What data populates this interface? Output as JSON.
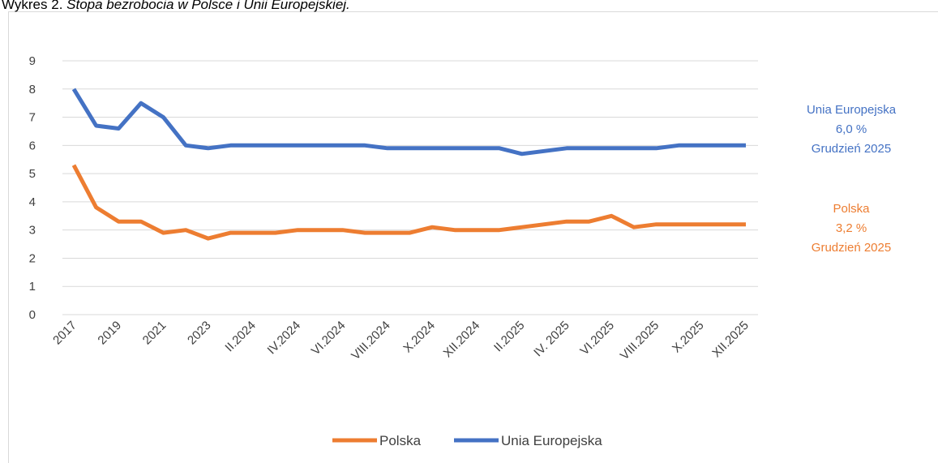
{
  "chart_data": {
    "type": "line",
    "title": {
      "lead": "Wykres 2.",
      "rest": "Stopa bezrobocia w Polsce i Unii Europejskiej."
    },
    "categories": [
      "2017",
      null,
      "2019",
      null,
      "2021",
      null,
      "2023",
      null,
      "II.2024",
      null,
      "IV.2024",
      null,
      "VI.2024",
      null,
      "VIII.2024",
      null,
      "X.2024",
      null,
      "XII.2024",
      null,
      "II.2025",
      null,
      "IV. 2025",
      null,
      "VI.2025",
      null,
      "VIII.2025",
      null,
      "X.2025",
      null,
      "XII.2025"
    ],
    "series": [
      {
        "name": "Polska",
        "color": "#ed7d31",
        "values": [
          5.3,
          3.8,
          3.3,
          3.3,
          2.9,
          3.0,
          2.7,
          2.9,
          2.9,
          2.9,
          3.0,
          3.0,
          3.0,
          2.9,
          2.9,
          2.9,
          3.1,
          3.0,
          3.0,
          3.0,
          3.1,
          3.2,
          3.3,
          3.3,
          3.5,
          3.1,
          3.2,
          3.2,
          3.2,
          3.2,
          3.2
        ]
      },
      {
        "name": "Unia Europejska",
        "color": "#4472c4",
        "values": [
          8.0,
          6.7,
          6.6,
          7.5,
          7.0,
          6.0,
          5.9,
          6.0,
          6.0,
          6.0,
          6.0,
          6.0,
          6.0,
          6.0,
          5.9,
          5.9,
          5.9,
          5.9,
          5.9,
          5.9,
          5.7,
          5.8,
          5.9,
          5.9,
          5.9,
          5.9,
          5.9,
          6.0,
          6.0,
          6.0,
          6.0
        ]
      }
    ],
    "annotations": [
      {
        "color": "#4472c4",
        "lines": [
          "Unia Europejska",
          "6,0 %",
          "Grudzień 2025"
        ]
      },
      {
        "color": "#ed7d31",
        "lines": [
          "Polska",
          "3,2 %",
          "Grudzień 2025"
        ]
      }
    ],
    "ylim": [
      0,
      9
    ],
    "yticks": [
      0,
      1,
      2,
      3,
      4,
      5,
      6,
      7,
      8,
      9
    ],
    "grid": true,
    "legend": "bottom"
  }
}
